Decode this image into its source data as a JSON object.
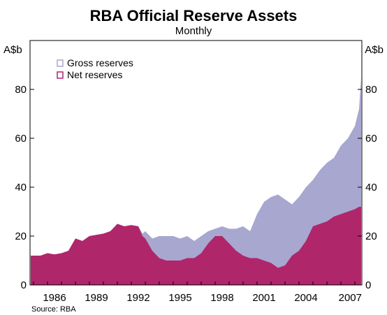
{
  "chart_data": {
    "type": "area",
    "title": "RBA Official Reserve Assets",
    "subtitle": "Monthly",
    "ylabel_left": "A$b",
    "ylabel_right": "A$b",
    "xlim": [
      1983.75,
      2007.5
    ],
    "ylim": [
      0,
      100
    ],
    "visible_ylim": [
      0,
      90
    ],
    "y_ticks": [
      0,
      20,
      40,
      60,
      80
    ],
    "y_tick_labels": [
      "0",
      "20",
      "40",
      "60",
      "80"
    ],
    "x_ticks": [
      1986,
      1989,
      1992,
      1995,
      1998,
      2001,
      2004,
      2007
    ],
    "x_tick_labels": [
      "1986",
      "1989",
      "1992",
      "1995",
      "1998",
      "2001",
      "2004",
      "2007"
    ],
    "grid": false,
    "legend": "top-left",
    "source": "Source: RBA",
    "colors": {
      "gross": "#a8a7d0",
      "net": "#b0266a"
    },
    "series": [
      {
        "name": "Gross reserves",
        "color": "#a8a7d0",
        "x": [
          1983.8,
          1984.5,
          1985.0,
          1985.5,
          1986.0,
          1986.5,
          1987.0,
          1987.5,
          1988.0,
          1988.5,
          1989.0,
          1989.5,
          1990.0,
          1990.5,
          1991.0,
          1991.5,
          1991.8,
          1992.0,
          1992.5,
          1993.0,
          1993.5,
          1994.0,
          1994.5,
          1995.0,
          1995.5,
          1996.0,
          1996.5,
          1997.0,
          1997.5,
          1998.0,
          1998.5,
          1999.0,
          1999.5,
          2000.0,
          2000.5,
          2001.0,
          2001.5,
          2002.0,
          2002.5,
          2003.0,
          2003.5,
          2004.0,
          2004.5,
          2005.0,
          2005.5,
          2006.0,
          2006.5,
          2007.0,
          2007.3,
          2007.45
        ],
        "values": [
          12,
          12,
          13,
          12.5,
          13,
          14,
          19,
          18,
          20,
          20.5,
          21,
          22,
          25,
          24,
          24.5,
          24,
          21,
          22,
          19,
          20,
          20,
          20,
          19,
          20,
          18,
          20,
          22,
          23,
          24,
          23,
          23,
          24,
          22,
          29,
          34,
          36,
          37,
          35,
          33,
          36,
          40,
          43,
          47,
          50,
          52,
          57,
          60,
          65,
          72,
          85
        ]
      },
      {
        "name": "Net reserves",
        "color": "#b0266a",
        "x": [
          1983.8,
          1984.5,
          1985.0,
          1985.5,
          1986.0,
          1986.5,
          1987.0,
          1987.5,
          1988.0,
          1988.5,
          1989.0,
          1989.5,
          1990.0,
          1990.5,
          1991.0,
          1991.5,
          1991.8,
          1992.0,
          1992.5,
          1993.0,
          1993.5,
          1994.0,
          1994.5,
          1995.0,
          1995.5,
          1996.0,
          1996.5,
          1997.0,
          1997.5,
          1998.0,
          1998.5,
          1999.0,
          1999.5,
          2000.0,
          2000.5,
          2001.0,
          2001.5,
          2002.0,
          2002.5,
          2003.0,
          2003.5,
          2004.0,
          2004.5,
          2005.0,
          2005.5,
          2006.0,
          2006.5,
          2007.0,
          2007.3,
          2007.45
        ],
        "values": [
          12,
          12,
          13,
          12.5,
          13,
          14,
          19,
          18,
          20,
          20.5,
          21,
          22,
          25,
          24,
          24.5,
          24,
          20,
          19,
          14,
          11,
          10,
          10,
          10,
          11,
          11,
          13,
          17,
          20,
          20,
          17,
          14,
          12,
          11,
          11,
          10,
          9,
          7,
          8,
          12,
          14,
          18,
          24,
          25,
          26,
          28,
          29,
          30,
          31,
          32,
          32
        ]
      }
    ]
  }
}
